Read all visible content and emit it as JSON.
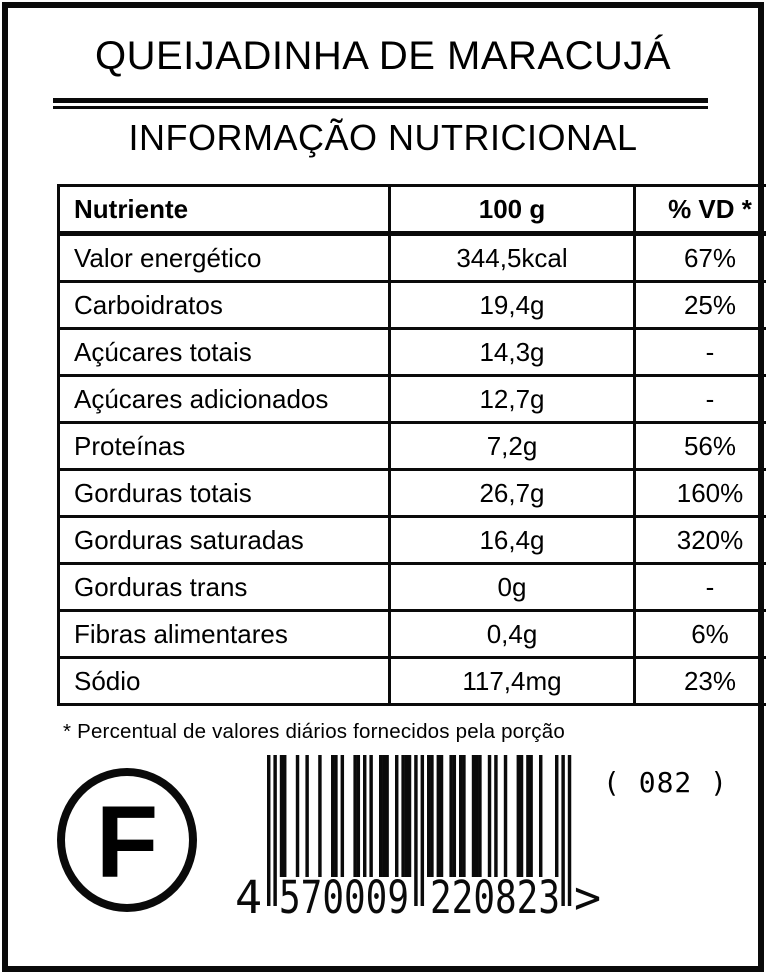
{
  "label": {
    "product_title": "QUEIJADINHA DE MARACUJÁ",
    "section_title": "INFORMAÇÃO NUTRICIONAL",
    "footnote": "* Percentual de valores diários fornecidos pela porção"
  },
  "table": {
    "headers": {
      "nutrient": "Nutriente",
      "amount": "100 g",
      "dv": "% VD *"
    },
    "rows": [
      {
        "name": "Valor energético",
        "amount": "344,5kcal",
        "dv": "67%"
      },
      {
        "name": "Carboidratos",
        "amount": "19,4g",
        "dv": "25%"
      },
      {
        "name": "Açúcares totais",
        "amount": "14,3g",
        "dv": "-"
      },
      {
        "name": "Açúcares adicionados",
        "amount": "12,7g",
        "dv": "-"
      },
      {
        "name": "Proteínas",
        "amount": "7,2g",
        "dv": "56%"
      },
      {
        "name": "Gorduras totais",
        "amount": "26,7g",
        "dv": "160%"
      },
      {
        "name": "Gorduras saturadas",
        "amount": "16,4g",
        "dv": "320%"
      },
      {
        "name": "Gorduras trans",
        "amount": "0g",
        "dv": "-"
      },
      {
        "name": "Fibras alimentares",
        "amount": "0,4g",
        "dv": "6%"
      },
      {
        "name": "Sódio",
        "amount": "117,4mg",
        "dv": "23%"
      }
    ]
  },
  "stamp": {
    "letter": "F"
  },
  "batch_code": "( 082 )",
  "barcode": {
    "value": "4570009220823",
    "display": {
      "first": "4",
      "group1": "570009",
      "group2": "220823",
      "suffix": ">"
    },
    "module_segments": [
      "101",
      "0110001",
      "0010001",
      "0001101",
      "0001101",
      "0100111",
      "0010111",
      "01010",
      "1101100",
      "1101100",
      "1110010",
      "1001000",
      "1101100",
      "1000010",
      "101"
    ]
  },
  "colors": {
    "ink": "#0a0a0a",
    "paper": "#ffffff"
  }
}
